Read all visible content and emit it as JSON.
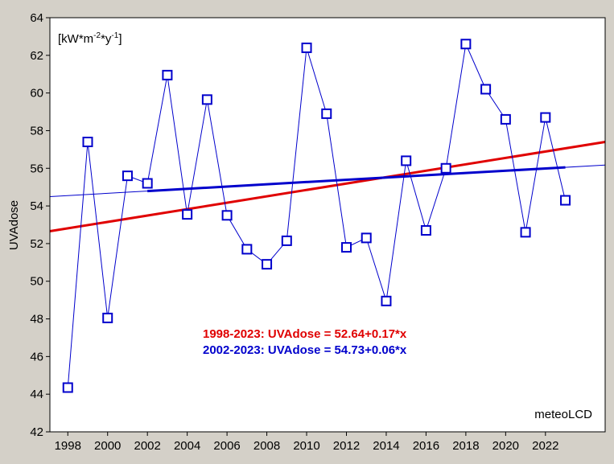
{
  "chart_data": {
    "type": "line",
    "ylabel": "UVAdose",
    "unit_annotation": {
      "base": "[kW*m",
      "exp1": "-2",
      "mid": "*y",
      "exp2": "-1",
      "tail": "]"
    },
    "watermark": "meteoLCD",
    "xlim": [
      1997.1,
      2025.0
    ],
    "ylim": [
      42,
      64
    ],
    "xticks": [
      1998,
      2000,
      2002,
      2004,
      2006,
      2008,
      2010,
      2012,
      2014,
      2016,
      2018,
      2020,
      2022
    ],
    "yticks": [
      42,
      44,
      46,
      48,
      50,
      52,
      54,
      56,
      58,
      60,
      62,
      64
    ],
    "grid": false,
    "series": [
      {
        "x": [
          1998,
          1999,
          2000,
          2001,
          2002,
          2003,
          2004,
          2005,
          2006,
          2007,
          2008,
          2009,
          2010,
          2011,
          2012,
          2013,
          2014,
          2015,
          2016,
          2017,
          2018,
          2019,
          2020,
          2021,
          2022,
          2023
        ],
        "values": [
          44.35,
          57.4,
          48.05,
          55.6,
          55.2,
          60.95,
          53.55,
          59.65,
          53.5,
          51.7,
          50.9,
          52.15,
          62.4,
          58.9,
          51.8,
          52.3,
          48.95,
          56.4,
          52.7,
          56.0,
          62.6,
          60.2,
          58.6,
          52.6,
          58.7,
          54.3
        ],
        "color": "#0000cc",
        "marker": "square"
      }
    ],
    "trendlines": [
      {
        "label": "1998-2023: UVAdose = 52.64+0.17*x",
        "intercept": 52.64,
        "slope": 0.17,
        "color": "#e00000",
        "fit_x_range": [
          1998,
          2023
        ]
      },
      {
        "label": "2002-2023: UVAdose = 54.73+0.06*x",
        "intercept": 54.73,
        "slope": 0.06,
        "color": "#0000cc",
        "fit_x_range": [
          2002,
          2023
        ]
      }
    ]
  }
}
